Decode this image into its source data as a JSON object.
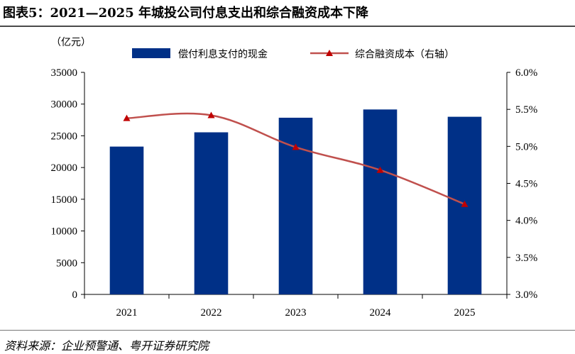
{
  "header": {
    "title": "图表5：2021—2025 年城投公司付息支出和综合融资成本下降"
  },
  "footer": {
    "source": "资料来源：企业预警通、粤开证券研究院"
  },
  "chart_data": {
    "type": "bar",
    "categories": [
      "2021",
      "2022",
      "2023",
      "2024",
      "2025"
    ],
    "y_unit_label": "（亿元）",
    "series": [
      {
        "name": "偿付利息支付的现金",
        "type": "bar",
        "axis": "left",
        "color": "#003087",
        "values": [
          23300,
          25550,
          27850,
          29150,
          28000
        ]
      },
      {
        "name": "综合融资成本（右轴）",
        "type": "line",
        "axis": "right",
        "color": "#c0504d",
        "marker": "triangle",
        "values": [
          5.38,
          5.42,
          4.99,
          4.68,
          4.22
        ]
      }
    ],
    "ylim": [
      0,
      35000
    ],
    "yticks": [
      "0",
      "5000",
      "10000",
      "15000",
      "20000",
      "25000",
      "30000",
      "35000"
    ],
    "y2lim": [
      3.0,
      6.0
    ],
    "y2ticks": [
      "3.0%",
      "3.5%",
      "4.0%",
      "4.5%",
      "5.0%",
      "5.5%",
      "6.0%"
    ],
    "legend_position": "top-center",
    "grid": false
  }
}
